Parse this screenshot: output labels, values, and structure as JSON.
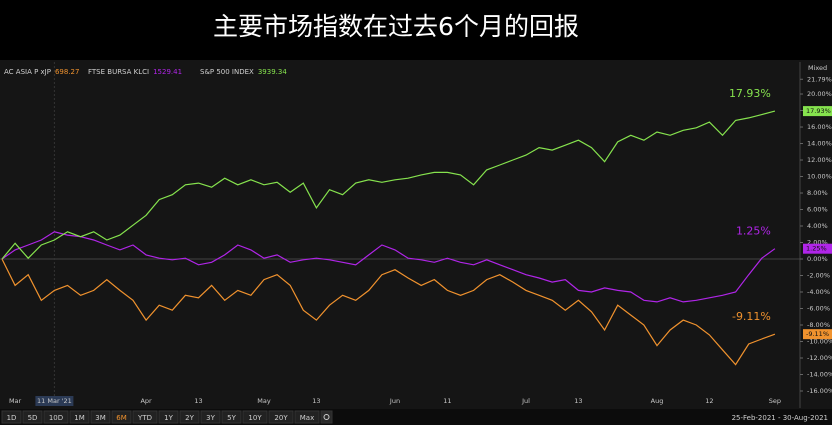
{
  "chart_data": {
    "type": "line",
    "title": "主要市场指数在过去6个月的回报",
    "scale_mode": "Mixed",
    "categories": [
      null,
      "Mar",
      null,
      null,
      "11 Mar '21",
      null,
      null,
      null,
      null,
      null,
      null,
      "Apr",
      null,
      null,
      null,
      "13",
      null,
      null,
      null,
      null,
      "May",
      null,
      null,
      null,
      "13",
      null,
      null,
      null,
      null,
      null,
      "Jun",
      null,
      null,
      null,
      "11",
      null,
      null,
      null,
      null,
      null,
      "Jul",
      null,
      null,
      null,
      "13",
      null,
      null,
      null,
      null,
      null,
      "Aug",
      null,
      null,
      null,
      "12",
      null,
      null,
      null,
      null,
      "Sep"
    ],
    "series": [
      {
        "name": "AC ASIA P xJP",
        "last_price": 698.27,
        "color": "#f0922e",
        "values": [
          0,
          -3.2,
          -1.9,
          -5.0,
          -3.8,
          -3.2,
          -4.4,
          -3.8,
          -2.5,
          -3.8,
          -5.0,
          -7.4,
          -5.6,
          -6.2,
          -4.4,
          -4.7,
          -3.2,
          -5.0,
          -3.8,
          -4.4,
          -2.5,
          -1.9,
          -3.2,
          -6.2,
          -7.4,
          -5.6,
          -4.4,
          -5.0,
          -3.8,
          -1.9,
          -1.3,
          -2.3,
          -3.2,
          -2.5,
          -3.8,
          -4.4,
          -3.8,
          -2.5,
          -1.9,
          -2.8,
          -3.8,
          -4.4,
          -5.0,
          -6.2,
          -5.0,
          -6.4,
          -8.6,
          -5.6,
          -6.8,
          -8.0,
          -10.5,
          -8.6,
          -7.4,
          -8.0,
          -9.2,
          -11.0,
          -12.8,
          -10.3,
          -9.7,
          -9.11
        ],
        "value_labels": [
          null,
          null,
          null,
          null,
          null,
          null,
          null,
          null,
          null,
          null,
          null,
          null,
          null,
          null,
          null,
          null,
          null,
          null,
          null,
          null,
          null,
          null,
          null,
          null,
          null,
          null,
          null,
          null,
          null,
          null,
          null,
          null,
          null,
          null,
          null,
          null,
          null,
          null,
          null,
          null,
          null,
          null,
          null,
          null,
          null,
          null,
          null,
          null,
          null,
          null,
          null,
          null,
          null,
          null,
          null,
          null,
          null,
          null,
          null,
          "-9.11%"
        ]
      },
      {
        "name": "FTSE BURSA KLCI",
        "last_price": 1529.41,
        "color": "#b025e8",
        "values": [
          0,
          1.1,
          1.7,
          2.3,
          3.3,
          2.9,
          2.7,
          2.3,
          1.7,
          1.1,
          1.7,
          0.5,
          0.1,
          -0.1,
          0.1,
          -0.7,
          -0.4,
          0.5,
          1.7,
          1.1,
          0.1,
          0.5,
          -0.4,
          -0.1,
          0.1,
          -0.1,
          -0.4,
          -0.7,
          0.5,
          1.7,
          1.1,
          0.1,
          -0.1,
          -0.4,
          0.1,
          -0.4,
          -0.7,
          -0.1,
          -0.7,
          -1.3,
          -1.9,
          -2.3,
          -2.8,
          -2.5,
          -3.8,
          -4.0,
          -3.5,
          -3.8,
          -4.0,
          -5.0,
          -5.2,
          -4.7,
          -5.2,
          -5.0,
          -4.7,
          -4.4,
          -4.0,
          -1.9,
          0.1,
          1.25
        ],
        "value_labels": [
          null,
          null,
          null,
          null,
          null,
          null,
          null,
          null,
          null,
          null,
          null,
          null,
          null,
          null,
          null,
          null,
          null,
          null,
          null,
          null,
          null,
          null,
          null,
          null,
          null,
          null,
          null,
          null,
          null,
          null,
          null,
          null,
          null,
          null,
          null,
          null,
          null,
          null,
          null,
          null,
          null,
          null,
          null,
          null,
          null,
          null,
          null,
          null,
          null,
          null,
          null,
          null,
          null,
          null,
          null,
          null,
          null,
          null,
          null,
          "1.25%"
        ]
      },
      {
        "name": "S&P 500 INDEX",
        "last_price": 3939.34,
        "color": "#86e34e",
        "values": [
          0,
          1.9,
          0.1,
          1.7,
          2.3,
          3.3,
          2.7,
          3.3,
          2.3,
          2.9,
          4.1,
          5.3,
          7.2,
          7.8,
          9.0,
          9.2,
          8.7,
          9.8,
          9.0,
          9.6,
          9.0,
          9.3,
          8.1,
          9.2,
          6.2,
          8.4,
          7.8,
          9.2,
          9.6,
          9.3,
          9.6,
          9.8,
          10.2,
          10.5,
          10.5,
          10.2,
          9.0,
          10.8,
          11.4,
          12.0,
          12.6,
          13.5,
          13.2,
          13.8,
          14.4,
          13.5,
          11.8,
          14.2,
          15.0,
          14.4,
          15.4,
          15.0,
          15.6,
          15.9,
          16.6,
          15.0,
          16.8,
          17.1,
          17.5,
          17.93
        ],
        "value_labels": [
          null,
          null,
          null,
          null,
          null,
          null,
          null,
          null,
          null,
          null,
          null,
          null,
          null,
          null,
          null,
          null,
          null,
          null,
          null,
          null,
          null,
          null,
          null,
          null,
          null,
          null,
          null,
          null,
          null,
          null,
          null,
          null,
          null,
          null,
          null,
          null,
          null,
          null,
          null,
          null,
          null,
          null,
          null,
          null,
          null,
          null,
          null,
          null,
          null,
          null,
          null,
          null,
          null,
          null,
          null,
          null,
          null,
          null,
          null,
          "17.93%"
        ]
      }
    ],
    "ylim": [
      -17.2,
      22.5
    ],
    "yticks": [
      {
        "value": 21.79,
        "label": "21.79%"
      },
      {
        "value": 20,
        "label": "20.00%"
      },
      {
        "value": 18,
        "label": "18.00%"
      },
      {
        "value": 16,
        "label": "16.00%"
      },
      {
        "value": 14,
        "label": "14.00%"
      },
      {
        "value": 12,
        "label": "12.00%"
      },
      {
        "value": 10,
        "label": "10.00%"
      },
      {
        "value": 8,
        "label": "8.00%"
      },
      {
        "value": 6,
        "label": "6.00%"
      },
      {
        "value": 4,
        "label": "4.00%"
      },
      {
        "value": 2,
        "label": "2.00%"
      },
      {
        "value": 0,
        "label": "0.00%"
      },
      {
        "value": -2,
        "label": "-2.00%"
      },
      {
        "value": -4,
        "label": "-4.00%"
      },
      {
        "value": -6,
        "label": "-6.00%"
      },
      {
        "value": -8,
        "label": "-8.00%"
      },
      {
        "value": -10,
        "label": "-10.00%"
      },
      {
        "value": -12,
        "label": "-12.00%"
      },
      {
        "value": -14,
        "label": "-14.00%"
      },
      {
        "value": -16,
        "label": "-16.00%"
      }
    ]
  },
  "toolbar": {
    "ranges": [
      "1D",
      "5D",
      "10D",
      "1M",
      "3M",
      "6M",
      "YTD",
      "1Y",
      "2Y",
      "3Y",
      "5Y",
      "10Y",
      "20Y",
      "Max"
    ],
    "selected": 5,
    "date_range": "25-Feb-2021 - 30-Aug-2021"
  }
}
